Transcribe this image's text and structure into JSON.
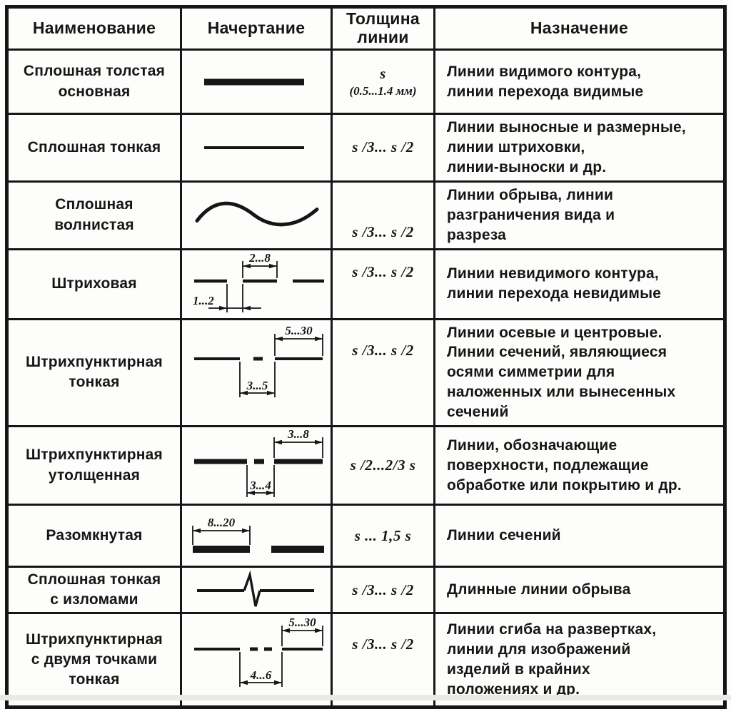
{
  "page": {
    "background": "#fdfdfc",
    "ink": "#161616"
  },
  "table": {
    "headers": [
      "Наименование",
      "Начертание",
      "Толщина\nлинии",
      "Назначение"
    ],
    "rows": [
      {
        "name": "Сплошная толстая\nосновная",
        "drawing": "solid-thick",
        "thickness": "s",
        "thickness_note": "(0.5...1.4 мм)",
        "purpose": "Линии видимого контура,\nлинии перехода видимые"
      },
      {
        "name": "Сплошная тонкая",
        "drawing": "solid-thin",
        "thickness": "s /3... s /2",
        "purpose": "Линии выносные и размерные,\nлинии штриховки,\nлинии-выноски и др."
      },
      {
        "name": "Сплошная\nволнистая",
        "drawing": "wavy",
        "thickness": "s /3... s /2",
        "purpose": "Линии обрыва, линии\nразграничения вида и\nразреза"
      },
      {
        "name": "Штриховая",
        "drawing": "dashed",
        "dims": {
          "top": "2...8",
          "bottom": "1...2"
        },
        "thickness": "s /3... s /2",
        "purpose": "Линии невидимого контура,\nлинии перехода невидимые"
      },
      {
        "name": "Штрихпунктирная\nтонкая",
        "drawing": "dash-dot-thin",
        "dims": {
          "top": "5...30",
          "bottom": "3...5"
        },
        "thickness": "s /3... s /2",
        "purpose": "Линии осевые и центровые.\nЛинии сечений, являющиеся\nосями симметрии для\nналоженных или вынесенных\nсечений"
      },
      {
        "name": "Штрихпунктирная\nутолщенная",
        "drawing": "dash-dot-thick",
        "dims": {
          "top": "3...8",
          "bottom": "3...4"
        },
        "thickness": "s /2...2/3 s",
        "purpose": "Линии, обозначающие\nповерхности, подлежащие\nобработке или покрытию и др."
      },
      {
        "name": "Разомкнутая",
        "drawing": "open",
        "dims": {
          "top": "8...20"
        },
        "thickness": "s ... 1,5 s",
        "purpose": "Линии сечений"
      },
      {
        "name": "Сплошная тонкая\nс изломами",
        "drawing": "zigzag",
        "thickness": "s /3... s /2",
        "purpose": "Длинные линии обрыва"
      },
      {
        "name": "Штрихпунктирная\nс двумя точками\nтонкая",
        "drawing": "dash-two-dots",
        "dims": {
          "top": "5...30",
          "bottom": "4...6"
        },
        "thickness": "s /3... s /2",
        "purpose": "Линии сгиба на развертках,\nлинии для изображений\nизделий в крайних\nположениях и др."
      }
    ]
  }
}
